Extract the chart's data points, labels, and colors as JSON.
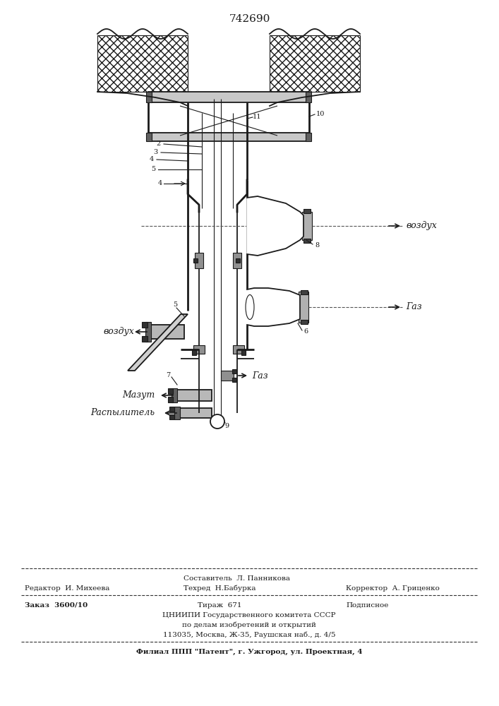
{
  "patent_number": "742690",
  "bg": "#ffffff",
  "lc": "#1a1a1a",
  "labels": {
    "vozduh_right": "воздух",
    "gaz_right": "Газ",
    "vozduh_left": "воздух",
    "gaz_mid": "Газ",
    "mazut": "Мазут",
    "raspylitel": "Распылитель"
  },
  "footer": {
    "editor": "Редактор  И. Михеева",
    "sostavitel": "Составитель  Л. Панникова",
    "tekhred": "Техред  Н.Бабурка",
    "korrektor": "Корректор  А. Гриценко",
    "zakaz": "Заказ  3600/10",
    "tirazh": "Тираж  671",
    "podpisnoe": "Подписное",
    "tsniipи1": "ЦНИИПИ Государственного комитета СССР",
    "tsniipи2": "по делам изобретений и открытий",
    "tsniipи3": "113035, Москва, Ж-35, Раушская наб., д. 4/5",
    "filial": "Филиал ППП \"Патент\", г. Ужгород, ул. Проектная, 4"
  }
}
